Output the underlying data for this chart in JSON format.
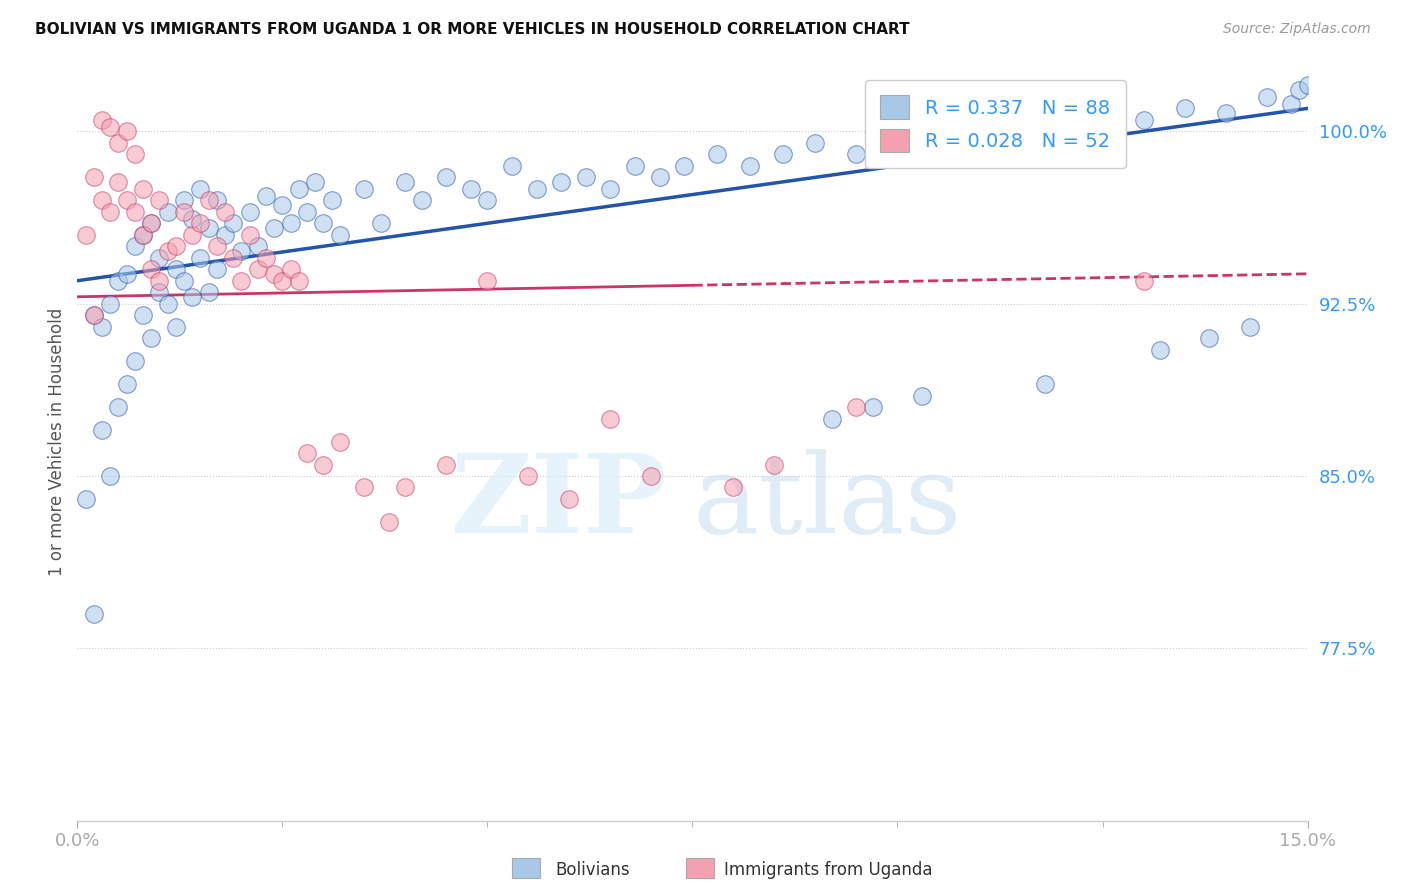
{
  "title": "BOLIVIAN VS IMMIGRANTS FROM UGANDA 1 OR MORE VEHICLES IN HOUSEHOLD CORRELATION CHART",
  "source": "Source: ZipAtlas.com",
  "ylabel": "1 or more Vehicles in Household",
  "yticks": [
    77.5,
    85.0,
    92.5,
    100.0
  ],
  "xlim": [
    0.0,
    15.0
  ],
  "ylim": [
    70.0,
    103.0
  ],
  "legend_label1": "Bolivians",
  "legend_label2": "Immigrants from Uganda",
  "R1": 0.337,
  "N1": 88,
  "R2": 0.028,
  "N2": 52,
  "color_blue": "#a8c8e8",
  "color_pink": "#f4a0b0",
  "trendline_blue": "#2255aa",
  "trendline_pink": "#cc3366",
  "blue_scatter_x": [
    0.1,
    0.2,
    0.2,
    0.3,
    0.3,
    0.4,
    0.4,
    0.5,
    0.5,
    0.6,
    0.6,
    0.7,
    0.7,
    0.8,
    0.8,
    0.9,
    0.9,
    1.0,
    1.0,
    1.1,
    1.1,
    1.2,
    1.2,
    1.3,
    1.3,
    1.4,
    1.4,
    1.5,
    1.5,
    1.6,
    1.6,
    1.7,
    1.7,
    1.8,
    1.9,
    2.0,
    2.1,
    2.2,
    2.3,
    2.4,
    2.5,
    2.6,
    2.7,
    2.8,
    2.9,
    3.0,
    3.1,
    3.2,
    3.5,
    3.7,
    4.0,
    4.2,
    4.5,
    4.8,
    5.0,
    5.3,
    5.6,
    5.9,
    6.2,
    6.5,
    6.8,
    7.1,
    7.4,
    7.8,
    8.2,
    8.6,
    9.0,
    9.5,
    10.0,
    10.5,
    11.0,
    11.5,
    12.0,
    12.5,
    13.0,
    13.5,
    14.0,
    14.5,
    14.8,
    14.9,
    15.0,
    9.2,
    9.7,
    10.3,
    11.8,
    13.2,
    13.8,
    14.3
  ],
  "blue_scatter_y": [
    84.0,
    79.0,
    92.0,
    91.5,
    87.0,
    92.5,
    85.0,
    88.0,
    93.5,
    89.0,
    93.8,
    90.0,
    95.0,
    92.0,
    95.5,
    91.0,
    96.0,
    93.0,
    94.5,
    92.5,
    96.5,
    91.5,
    94.0,
    93.5,
    97.0,
    92.8,
    96.2,
    94.5,
    97.5,
    93.0,
    95.8,
    94.0,
    97.0,
    95.5,
    96.0,
    94.8,
    96.5,
    95.0,
    97.2,
    95.8,
    96.8,
    96.0,
    97.5,
    96.5,
    97.8,
    96.0,
    97.0,
    95.5,
    97.5,
    96.0,
    97.8,
    97.0,
    98.0,
    97.5,
    97.0,
    98.5,
    97.5,
    97.8,
    98.0,
    97.5,
    98.5,
    98.0,
    98.5,
    99.0,
    98.5,
    99.0,
    99.5,
    99.0,
    99.5,
    100.0,
    99.8,
    100.2,
    100.5,
    100.0,
    100.5,
    101.0,
    100.8,
    101.5,
    101.2,
    101.8,
    102.0,
    87.5,
    88.0,
    88.5,
    89.0,
    90.5,
    91.0,
    91.5
  ],
  "pink_scatter_x": [
    0.1,
    0.2,
    0.2,
    0.3,
    0.3,
    0.4,
    0.4,
    0.5,
    0.5,
    0.6,
    0.6,
    0.7,
    0.7,
    0.8,
    0.8,
    0.9,
    0.9,
    1.0,
    1.0,
    1.1,
    1.2,
    1.3,
    1.4,
    1.5,
    1.6,
    1.7,
    1.8,
    1.9,
    2.0,
    2.1,
    2.2,
    2.3,
    2.4,
    2.5,
    2.6,
    2.7,
    2.8,
    3.0,
    3.2,
    3.5,
    3.8,
    4.0,
    4.5,
    5.0,
    5.5,
    6.0,
    6.5,
    7.0,
    8.0,
    8.5,
    9.5,
    13.0
  ],
  "pink_scatter_y": [
    95.5,
    98.0,
    92.0,
    97.0,
    100.5,
    96.5,
    100.2,
    97.8,
    99.5,
    97.0,
    100.0,
    96.5,
    99.0,
    95.5,
    97.5,
    94.0,
    96.0,
    93.5,
    97.0,
    94.8,
    95.0,
    96.5,
    95.5,
    96.0,
    97.0,
    95.0,
    96.5,
    94.5,
    93.5,
    95.5,
    94.0,
    94.5,
    93.8,
    93.5,
    94.0,
    93.5,
    86.0,
    85.5,
    86.5,
    84.5,
    83.0,
    84.5,
    85.5,
    93.5,
    85.0,
    84.0,
    87.5,
    85.0,
    84.5,
    85.5,
    88.0,
    93.5
  ]
}
